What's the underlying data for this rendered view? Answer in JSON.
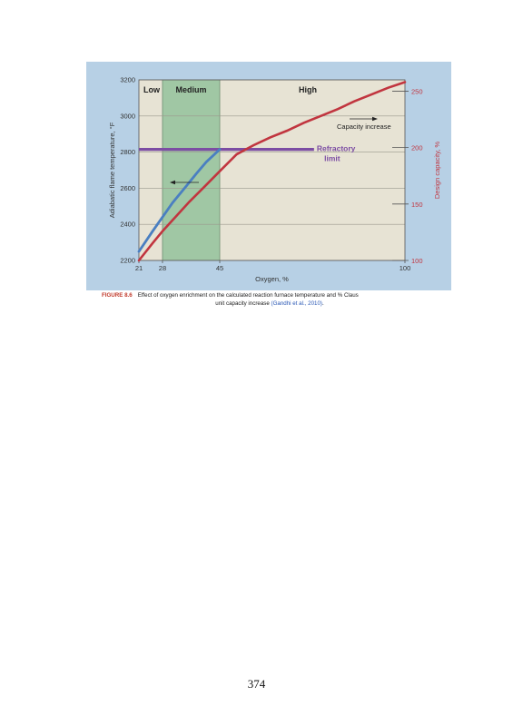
{
  "figure": {
    "colors": {
      "panel_bg": "#b7d0e5",
      "plot_bg": "#e7e3d4",
      "medium_band": "#9cc5a1",
      "temperature_line": "#4a7fc1",
      "capacity_line": "#c1353f",
      "refractory_line": "#7c4da3",
      "right_axis_text": "#c1353f"
    },
    "chart_data": {
      "type": "line",
      "x_label": "Oxygen, %",
      "y_label_left": "Adiabatic flame temperature, °F",
      "y_label_right": "Design capacity, %",
      "x_ticks": [
        "21",
        "28",
        "45",
        "100"
      ],
      "y_left_ticks": [
        "2200",
        "2400",
        "2600",
        "2800",
        "3000",
        "3200"
      ],
      "y_right_ticks": [
        "100",
        "150",
        "200",
        "250"
      ],
      "xlim": [
        21,
        100
      ],
      "ylim_left": [
        2200,
        3200
      ],
      "ylim_right": [
        100,
        260
      ],
      "regions": [
        {
          "label": "Low",
          "x_from": 21,
          "x_to": 28
        },
        {
          "label": "Medium",
          "x_from": 28,
          "x_to": 45
        },
        {
          "label": "High",
          "x_from": 45,
          "x_to": 100
        }
      ],
      "series": [
        {
          "axis": "left",
          "color": "#4a7fc1",
          "x": [
            21,
            25,
            28,
            31,
            35,
            38,
            41,
            45
          ],
          "y": [
            2250,
            2360,
            2440,
            2520,
            2610,
            2680,
            2745,
            2815
          ]
        },
        {
          "axis": "right",
          "color": "#c1353f",
          "x": [
            21,
            25,
            28,
            32,
            36,
            40,
            45,
            50,
            55,
            60,
            65,
            70,
            75,
            80,
            85,
            90,
            95,
            100
          ],
          "y": [
            100,
            115,
            126,
            139,
            152,
            164,
            179,
            194,
            202,
            209,
            215,
            222,
            228,
            234,
            241,
            247,
            253,
            258
          ]
        }
      ],
      "refractory_limit": {
        "value": 2815,
        "x_from": 21,
        "x_to": 73,
        "label_line1": "Refractory",
        "label_line2": "limit"
      },
      "annotations": {
        "capacity_increase": "Capacity increase"
      }
    }
  },
  "caption": {
    "label": "FIGURE 8.6",
    "text_line1": "Effect of oxygen enrichment on the calculated reaction furnace temperature and % Claus",
    "text_line2": "unit capacity increase",
    "citation": "(Gandhi et al., 2010)",
    "end": "."
  },
  "page_number": "374"
}
